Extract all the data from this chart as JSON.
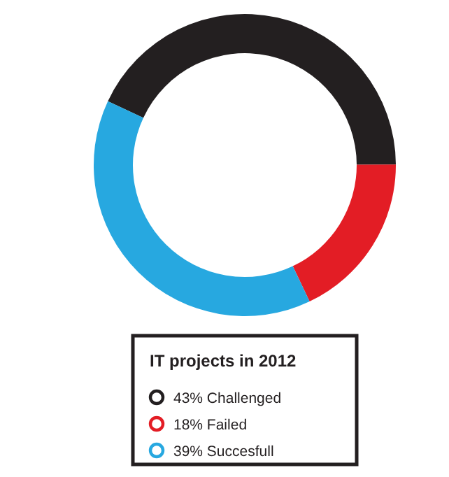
{
  "chart_data": {
    "type": "donut",
    "legend_title": "IT projects in 2012",
    "categories": [
      "43% Challenged",
      "18% Failed",
      "39% Succesfull"
    ],
    "values": [
      43,
      18,
      39
    ],
    "colors": [
      "#231f20",
      "#e31d25",
      "#27a8e0"
    ],
    "legend": "bottom"
  }
}
